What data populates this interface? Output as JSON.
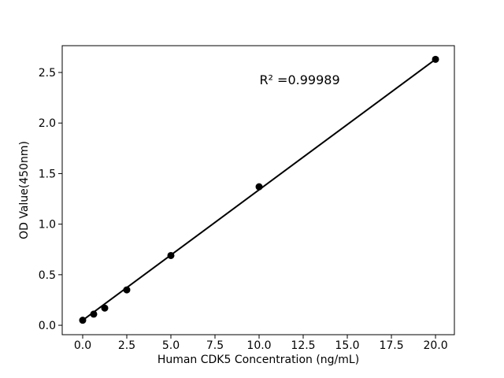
{
  "chart_data": {
    "type": "scatter",
    "title": "",
    "xlabel": "Human CDK5 Concentration (ng/mL)",
    "ylabel": "OD Value(450nm)",
    "xlim": [
      -1.16,
      21.07
    ],
    "ylim": [
      -0.093,
      2.765
    ],
    "x_ticks": [
      0,
      2.5,
      5,
      7.5,
      10,
      12.5,
      15,
      17.5,
      20
    ],
    "x_tick_labels": [
      "0.0",
      "2.5",
      "5.0",
      "7.5",
      "10.0",
      "12.5",
      "15.0",
      "17.5",
      "20.0"
    ],
    "y_ticks": [
      0,
      0.5,
      1.0,
      1.5,
      2.0,
      2.5
    ],
    "y_tick_labels": [
      "0.0",
      "0.5",
      "1.0",
      "1.5",
      "2.0",
      "2.5"
    ],
    "points": {
      "x": [
        0,
        0.625,
        1.25,
        2.5,
        5,
        10,
        20
      ],
      "y": [
        0.05,
        0.11,
        0.17,
        0.35,
        0.69,
        1.37,
        2.63
      ]
    },
    "fit_line": {
      "x": [
        0,
        20
      ],
      "y": [
        0.05,
        2.63
      ]
    },
    "annotation": {
      "text": "R² =0.99989",
      "x": 12.3,
      "y": 2.43
    },
    "grid": false,
    "legend": null,
    "colors": {
      "line": "#000000",
      "marker": "#000000",
      "text": "#000000",
      "background": "#ffffff",
      "spine": "#000000"
    }
  }
}
